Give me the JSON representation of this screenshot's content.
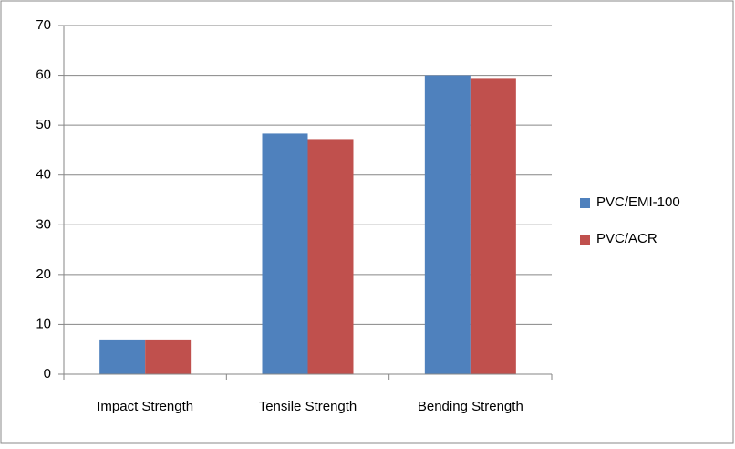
{
  "chart_data": {
    "type": "bar",
    "categories": [
      "Impact Strength",
      "Tensile Strength",
      "Bending Strength"
    ],
    "series": [
      {
        "name": "PVC/EMI-100",
        "color": "#4f81bd",
        "values": [
          6.8,
          48.3,
          60
        ]
      },
      {
        "name": "PVC/ACR",
        "color": "#c0504d",
        "values": [
          6.8,
          47.2,
          59.3
        ]
      }
    ],
    "ylim": [
      0,
      70
    ],
    "yticks": [
      0,
      10,
      20,
      30,
      40,
      50,
      60,
      70
    ],
    "grid": true,
    "legend": "right"
  }
}
